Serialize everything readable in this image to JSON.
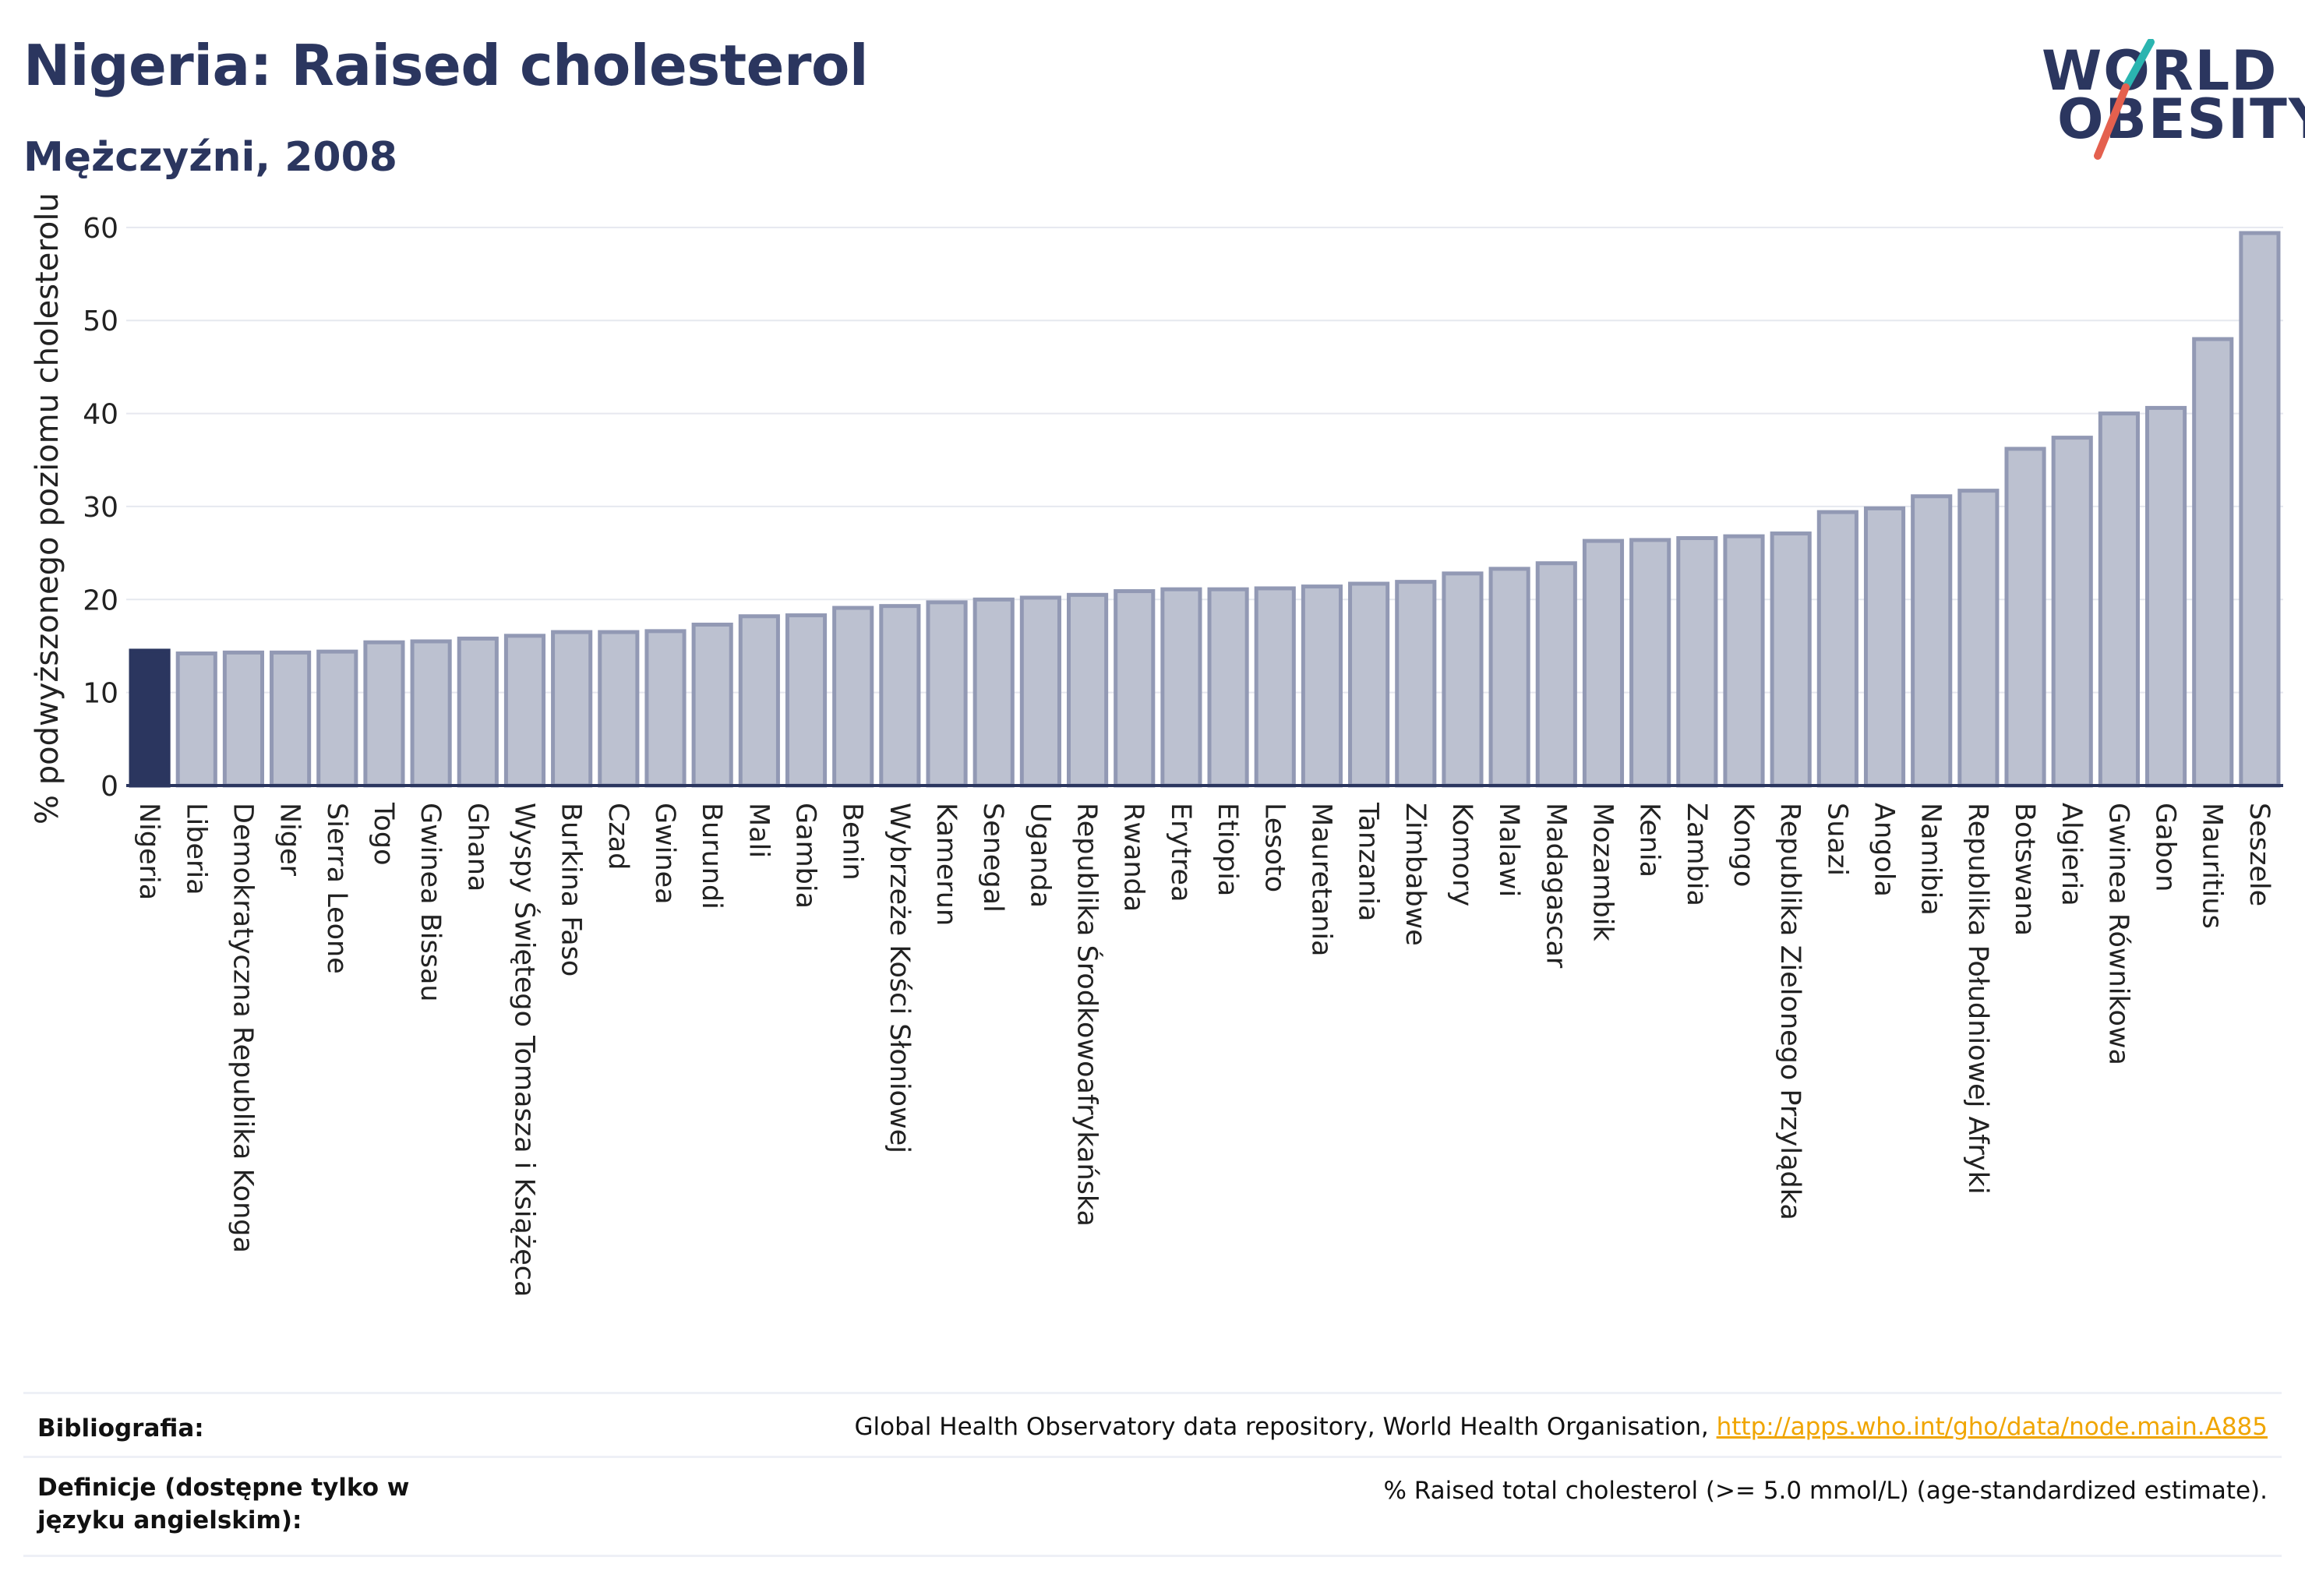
{
  "header": {
    "title": "Nigeria: Raised cholesterol",
    "subtitle": "Mężczyźni, 2008"
  },
  "logo": {
    "line1": "WORLD",
    "line2": "OBESITY"
  },
  "colors": {
    "bar_default": "#bcc1d0",
    "bar_border": "#9299b4",
    "bar_highlight": "#2b365f",
    "text": "#2b365f",
    "grid": "#e6e8ef",
    "link": "#f0a500",
    "logo_teal": "#2bb5b0",
    "logo_red": "#e4604e"
  },
  "chart_data": {
    "type": "bar",
    "title": "Nigeria: Raised cholesterol",
    "subtitle": "Mężczyźni, 2008",
    "xlabel": "",
    "ylabel": "% podwyższonego poziomu cholesterolu",
    "ylim": [
      0,
      62
    ],
    "yticks": [
      0,
      10,
      20,
      30,
      40,
      50,
      60
    ],
    "grid": true,
    "highlight": "Nigeria",
    "categories": [
      "Nigeria",
      "Liberia",
      "Demokratyczna Republika Konga",
      "Niger",
      "Sierra Leone",
      "Togo",
      "Gwinea Bissau",
      "Ghana",
      "Wyspy Świętego Tomasza i Książęca",
      "Burkina Faso",
      "Czad",
      "Gwinea",
      "Burundi",
      "Mali",
      "Gambia",
      "Benin",
      "Wybrzeże Kości Słoniowej",
      "Kamerun",
      "Senegal",
      "Uganda",
      "Republika Środkowoafrykańska",
      "Rwanda",
      "Erytrea",
      "Etiopia",
      "Lesoto",
      "Mauretania",
      "Tanzania",
      "Zimbabwe",
      "Komory",
      "Malawi",
      "Madagascar",
      "Mozambik",
      "Kenia",
      "Zambia",
      "Kongo",
      "Republika Zielonego Przylądka",
      "Suazi",
      "Angola",
      "Namibia",
      "Republika Południowej Afryki",
      "Botswana",
      "Algieria",
      "Gwinea Równikowa",
      "Gabon",
      "Mauritius",
      "Seszele"
    ],
    "values": [
      14.5,
      14.2,
      14.3,
      14.3,
      14.4,
      15.4,
      15.5,
      15.8,
      16.1,
      16.5,
      16.5,
      16.6,
      17.3,
      18.2,
      18.3,
      19.1,
      19.3,
      19.7,
      20.0,
      20.2,
      20.5,
      20.9,
      21.1,
      21.1,
      21.2,
      21.4,
      21.7,
      21.9,
      22.8,
      23.3,
      23.9,
      26.3,
      26.4,
      26.6,
      26.8,
      27.1,
      29.4,
      29.8,
      31.1,
      31.7,
      36.2,
      37.4,
      40.0,
      40.6,
      48.0,
      59.4
    ]
  },
  "footer": {
    "bib_label": "Bibliografia:",
    "bib_text": "Global Health Observatory data repository, World Health Organisation, ",
    "bib_link": "http://apps.who.int/gho/data/node.main.A885",
    "def_label": "Definicje (dostępne tylko w języku angielskim):",
    "def_text": "% Raised total cholesterol (>= 5.0 mmol/L) (age-standardized estimate)."
  }
}
